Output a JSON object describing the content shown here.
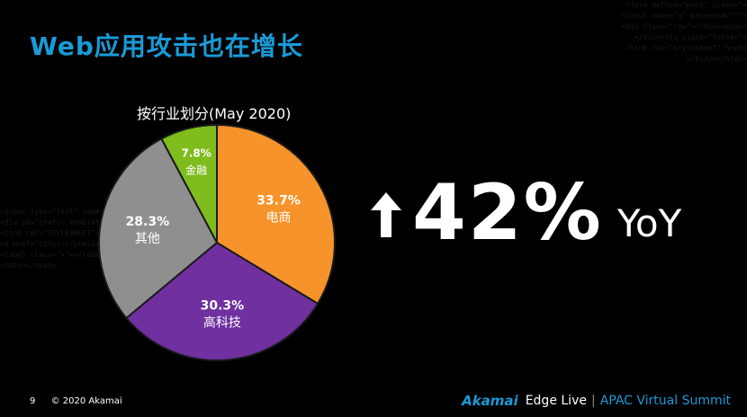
{
  "title": "Web应用攻击也在增长",
  "chart_title": "按行业划分(May 2020)",
  "chart_data": {
    "type": "pie",
    "title": "按行业划分(May 2020)",
    "slices": [
      {
        "name": "电商",
        "value": 33.7,
        "label": "33.7%",
        "color": "#f7932b"
      },
      {
        "name": "高科技",
        "value": 30.3,
        "label": "30.3%",
        "color": "#7030a0"
      },
      {
        "name": "其他",
        "value": 28.3,
        "label": "28.3%",
        "color": "#8f8f8f"
      },
      {
        "name": "金融",
        "value": 7.8,
        "label": "7.8%",
        "color": "#7fbc1d"
      }
    ]
  },
  "stat": {
    "value": "42%",
    "unit": "YoY",
    "arrow_icon": "up-arrow-icon"
  },
  "footer": {
    "page": "9",
    "copyright": "© 2020 Akamai"
  },
  "brand": {
    "logo": "Akamai",
    "event": "Edge Live",
    "separator": "|",
    "summit": "APAC Virtual Summit"
  },
  "colors": {
    "accent": "#1a9ad6",
    "background": "#000000"
  }
}
